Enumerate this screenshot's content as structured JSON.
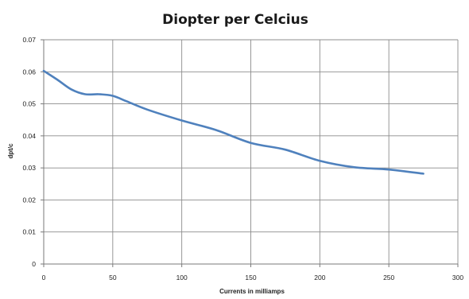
{
  "chart_data": {
    "type": "line",
    "title": "Diopter per Celcius",
    "xlabel": "Currents in milliamps",
    "ylabel": "dpt/c",
    "xlim": [
      0,
      300
    ],
    "ylim": [
      0,
      0.07
    ],
    "x_ticks": [
      "0",
      "50",
      "100",
      "150",
      "200",
      "250",
      "300"
    ],
    "y_ticks": [
      "0",
      "0.01",
      "0.02",
      "0.03",
      "0.04",
      "0.05",
      "0.06",
      "0.07"
    ],
    "grid": true,
    "legend": "none",
    "series": [
      {
        "color": "#4f81bd",
        "x": [
          0,
          10,
          20,
          30,
          40,
          50,
          60,
          75,
          100,
          125,
          150,
          175,
          200,
          225,
          250,
          275
        ],
        "y": [
          0.0603,
          0.0575,
          0.0545,
          0.053,
          0.053,
          0.0525,
          0.0508,
          0.0482,
          0.0448,
          0.0418,
          0.0378,
          0.0357,
          0.0322,
          0.0302,
          0.0295,
          0.0282
        ]
      }
    ]
  }
}
